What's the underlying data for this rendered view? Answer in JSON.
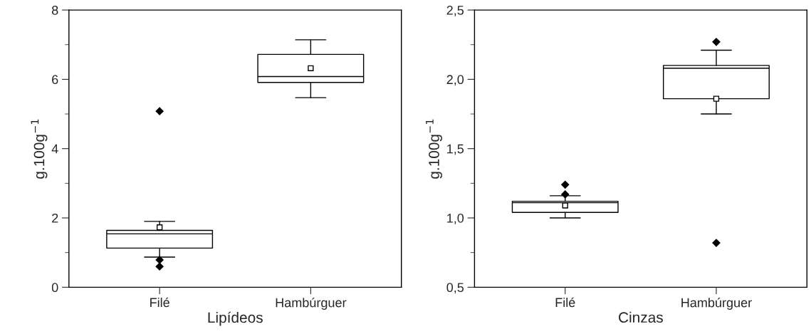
{
  "chart_data": [
    {
      "type": "box",
      "xlabel": "Lipídeos",
      "ylabel": "g.100g$^{−1}$",
      "categories": [
        "Filé",
        "Hambúrguer"
      ],
      "boxes": [
        {
          "low": 0.87,
          "q1": 1.13,
          "median": 1.54,
          "q3": 1.64,
          "high": 1.9,
          "mean": 1.73,
          "outliers": [
            5.08,
            0.79,
            0.6
          ]
        },
        {
          "low": 5.47,
          "q1": 5.91,
          "median": 6.08,
          "q3": 6.72,
          "high": 7.14,
          "mean": 6.32
        }
      ],
      "ylim": [
        0,
        8
      ],
      "yticks": [
        0,
        2,
        4,
        6,
        8
      ],
      "grid": false
    },
    {
      "type": "box",
      "xlabel": "Cinzas",
      "ylabel": "g.100g$^{−1}$",
      "categories": [
        "Filé",
        "Hambúrguer"
      ],
      "boxes": [
        {
          "low": 1.0,
          "q1": 1.04,
          "median": 1.11,
          "q3": 1.12,
          "high": 1.16,
          "mean": 1.09,
          "outliers": [
            1.24,
            1.17
          ]
        },
        {
          "low": 1.75,
          "q1": 1.86,
          "median": 2.08,
          "q3": 2.1,
          "high": 2.21,
          "mean": 1.86,
          "outliers": [
            2.27,
            0.82
          ]
        }
      ],
      "ylim": [
        0.5,
        2.5
      ],
      "yticks": [
        {
          "value": 0.5,
          "label": "0,5"
        },
        {
          "value": 1.0,
          "label": "1,0"
        },
        {
          "value": 1.5,
          "label": "1,5"
        },
        {
          "value": 2.0,
          "label": "2,0"
        },
        {
          "value": 2.5,
          "label": "2,5"
        }
      ],
      "grid": false
    }
  ]
}
